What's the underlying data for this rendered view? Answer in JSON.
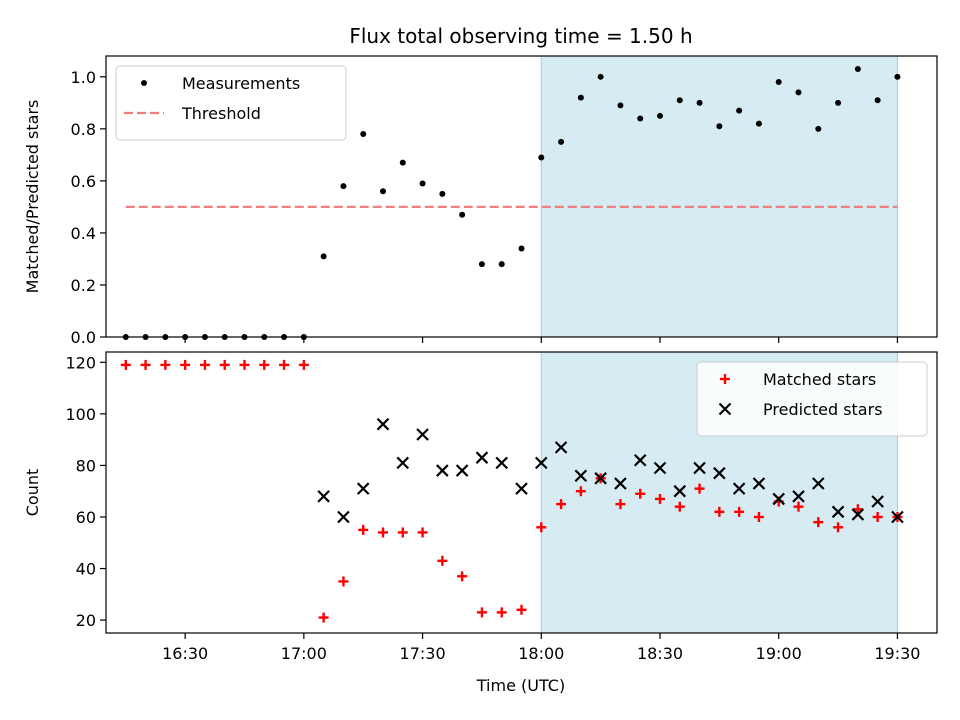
{
  "title": "Flux total observing time = 1.50 h",
  "xlabel": "Time (UTC)",
  "chart_data": [
    {
      "type": "scatter",
      "ylabel": "Matched/Predicted stars",
      "ylim": [
        0,
        1.08
      ],
      "yticks": [
        "0.0",
        "0.2",
        "0.4",
        "0.6",
        "0.8",
        "1.0"
      ],
      "xlim": [
        "16:10",
        "19:40"
      ],
      "shaded_span": [
        "18:00",
        "19:30"
      ],
      "legend_position": "upper-left",
      "series": [
        {
          "name": "Measurements",
          "color": "#000000",
          "marker": "dot",
          "points": [
            [
              "16:15",
              0.0
            ],
            [
              "16:20",
              0.0
            ],
            [
              "16:25",
              0.0
            ],
            [
              "16:30",
              0.0
            ],
            [
              "16:35",
              0.0
            ],
            [
              "16:40",
              0.0
            ],
            [
              "16:45",
              0.0
            ],
            [
              "16:50",
              0.0
            ],
            [
              "16:55",
              0.0
            ],
            [
              "17:00",
              0.0
            ],
            [
              "17:05",
              0.31
            ],
            [
              "17:10",
              0.58
            ],
            [
              "17:15",
              0.78
            ],
            [
              "17:20",
              0.56
            ],
            [
              "17:25",
              0.67
            ],
            [
              "17:30",
              0.59
            ],
            [
              "17:35",
              0.55
            ],
            [
              "17:40",
              0.47
            ],
            [
              "17:45",
              0.28
            ],
            [
              "17:50",
              0.28
            ],
            [
              "17:55",
              0.34
            ],
            [
              "18:00",
              0.69
            ],
            [
              "18:05",
              0.75
            ],
            [
              "18:10",
              0.92
            ],
            [
              "18:15",
              1.0
            ],
            [
              "18:20",
              0.89
            ],
            [
              "18:25",
              0.84
            ],
            [
              "18:30",
              0.85
            ],
            [
              "18:35",
              0.91
            ],
            [
              "18:40",
              0.9
            ],
            [
              "18:45",
              0.81
            ],
            [
              "18:50",
              0.87
            ],
            [
              "18:55",
              0.82
            ],
            [
              "19:00",
              0.98
            ],
            [
              "19:05",
              0.94
            ],
            [
              "19:10",
              0.8
            ],
            [
              "19:15",
              0.9
            ],
            [
              "19:20",
              1.03
            ],
            [
              "19:25",
              0.91
            ],
            [
              "19:30",
              1.0
            ]
          ]
        },
        {
          "name": "Threshold",
          "color": "#f08080",
          "marker": "dashed-line",
          "points": [
            [
              "16:15",
              0.5
            ],
            [
              "19:30",
              0.5
            ]
          ]
        }
      ]
    },
    {
      "type": "scatter",
      "ylabel": "Count",
      "ylim": [
        15,
        124
      ],
      "yticks": [
        "20",
        "40",
        "60",
        "80",
        "100",
        "120"
      ],
      "xticks": [
        "16:30",
        "17:00",
        "17:30",
        "18:00",
        "18:30",
        "19:00",
        "19:30"
      ],
      "xlim": [
        "16:10",
        "19:40"
      ],
      "shaded_span": [
        "18:00",
        "19:30"
      ],
      "legend_position": "upper-right",
      "series": [
        {
          "name": "Matched stars",
          "color": "#ff0000",
          "marker": "plus",
          "points": [
            [
              "16:15",
              119
            ],
            [
              "16:20",
              119
            ],
            [
              "16:25",
              119
            ],
            [
              "16:30",
              119
            ],
            [
              "16:35",
              119
            ],
            [
              "16:40",
              119
            ],
            [
              "16:45",
              119
            ],
            [
              "16:50",
              119
            ],
            [
              "16:55",
              119
            ],
            [
              "17:00",
              119
            ],
            [
              "17:05",
              21
            ],
            [
              "17:10",
              35
            ],
            [
              "17:15",
              55
            ],
            [
              "17:20",
              54
            ],
            [
              "17:25",
              54
            ],
            [
              "17:30",
              54
            ],
            [
              "17:35",
              43
            ],
            [
              "17:40",
              37
            ],
            [
              "17:45",
              23
            ],
            [
              "17:50",
              23
            ],
            [
              "17:55",
              24
            ],
            [
              "18:00",
              56
            ],
            [
              "18:05",
              65
            ],
            [
              "18:10",
              70
            ],
            [
              "18:15",
              75
            ],
            [
              "18:20",
              65
            ],
            [
              "18:25",
              69
            ],
            [
              "18:30",
              67
            ],
            [
              "18:35",
              64
            ],
            [
              "18:40",
              71
            ],
            [
              "18:45",
              62
            ],
            [
              "18:50",
              62
            ],
            [
              "18:55",
              60
            ],
            [
              "19:00",
              66
            ],
            [
              "19:05",
              64
            ],
            [
              "19:10",
              58
            ],
            [
              "19:15",
              56
            ],
            [
              "19:20",
              63
            ],
            [
              "19:25",
              60
            ],
            [
              "19:30",
              60
            ]
          ]
        },
        {
          "name": "Predicted stars",
          "color": "#000000",
          "marker": "x",
          "points": [
            [
              "17:05",
              68
            ],
            [
              "17:10",
              60
            ],
            [
              "17:15",
              71
            ],
            [
              "17:20",
              96
            ],
            [
              "17:25",
              81
            ],
            [
              "17:30",
              92
            ],
            [
              "17:35",
              78
            ],
            [
              "17:40",
              78
            ],
            [
              "17:45",
              83
            ],
            [
              "17:50",
              81
            ],
            [
              "17:55",
              71
            ],
            [
              "18:00",
              81
            ],
            [
              "18:05",
              87
            ],
            [
              "18:10",
              76
            ],
            [
              "18:15",
              75
            ],
            [
              "18:20",
              73
            ],
            [
              "18:25",
              82
            ],
            [
              "18:30",
              79
            ],
            [
              "18:35",
              70
            ],
            [
              "18:40",
              79
            ],
            [
              "18:45",
              77
            ],
            [
              "18:50",
              71
            ],
            [
              "18:55",
              73
            ],
            [
              "19:00",
              67
            ],
            [
              "19:05",
              68
            ],
            [
              "19:10",
              73
            ],
            [
              "19:15",
              62
            ],
            [
              "19:20",
              61
            ],
            [
              "19:25",
              66
            ],
            [
              "19:30",
              60
            ]
          ]
        }
      ]
    }
  ]
}
